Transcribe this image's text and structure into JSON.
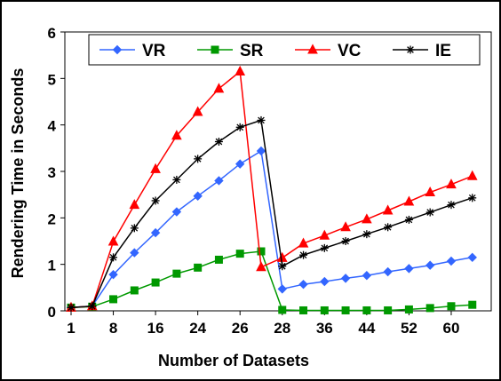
{
  "chart_data": {
    "type": "line",
    "title": "",
    "xlabel": "Number of Datasets",
    "ylabel": "Rendering Time in Seconds",
    "ylim": [
      0,
      6
    ],
    "grid": false,
    "legend_position": "top",
    "yticks": [
      "0",
      "1",
      "2",
      "3",
      "4",
      "5",
      "6"
    ],
    "xtick_labels": [
      "1",
      "8",
      "16",
      "24",
      "26",
      "28",
      "36",
      "44",
      "52",
      "60"
    ],
    "xtick_positions": [
      0,
      2,
      4,
      6,
      8,
      10,
      12,
      14,
      16,
      18
    ],
    "x": [
      0,
      1,
      2,
      3,
      4,
      5,
      6,
      7,
      8,
      9,
      10,
      11,
      12,
      13,
      14,
      15,
      16,
      17,
      18,
      19
    ],
    "series": [
      {
        "name": "VR",
        "color": "#3366FF",
        "marker": "diamond",
        "values": [
          0.07,
          0.1,
          0.78,
          1.25,
          1.68,
          2.13,
          2.47,
          2.8,
          3.16,
          3.44,
          0.47,
          0.57,
          0.63,
          0.7,
          0.76,
          0.84,
          0.91,
          0.98,
          1.07,
          1.15
        ]
      },
      {
        "name": "SR",
        "color": "#009900",
        "marker": "square",
        "values": [
          0.07,
          0.09,
          0.25,
          0.44,
          0.61,
          0.8,
          0.93,
          1.1,
          1.23,
          1.28,
          0.02,
          0.01,
          0.01,
          0.01,
          0.01,
          0.01,
          0.03,
          0.06,
          0.1,
          0.13
        ]
      },
      {
        "name": "VC",
        "color": "#FF0000",
        "marker": "triangle",
        "values": [
          0.07,
          0.1,
          1.49,
          2.28,
          3.05,
          3.77,
          4.28,
          4.78,
          5.15,
          0.94,
          1.14,
          1.45,
          1.62,
          1.8,
          1.97,
          2.16,
          2.35,
          2.55,
          2.72,
          2.9
        ]
      },
      {
        "name": "IE",
        "color": "#000000",
        "marker": "star",
        "values": [
          0.07,
          0.1,
          1.15,
          1.78,
          2.37,
          2.82,
          3.27,
          3.64,
          3.95,
          4.1,
          0.96,
          1.2,
          1.35,
          1.5,
          1.65,
          1.8,
          1.96,
          2.12,
          2.28,
          2.43
        ]
      }
    ]
  }
}
